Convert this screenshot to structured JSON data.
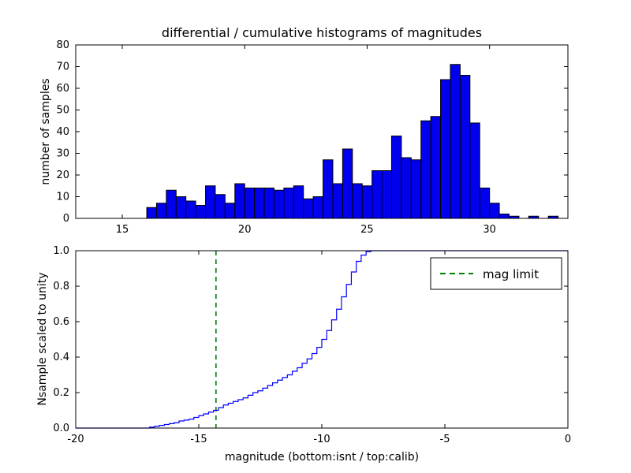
{
  "chart_data": [
    {
      "type": "bar",
      "title": "differential / cumulative histograms of magnitudes",
      "ylabel": "number of samples",
      "xlim": [
        13.1,
        33.2
      ],
      "ylim": [
        0,
        80
      ],
      "xticks": [
        15,
        20,
        25,
        30
      ],
      "xtick_labels": [
        "15",
        "20",
        "25",
        "30"
      ],
      "yticks": [
        0,
        10,
        20,
        30,
        40,
        50,
        60,
        70,
        80
      ],
      "ytick_labels": [
        "0",
        "10",
        "20",
        "30",
        "40",
        "50",
        "60",
        "70",
        "80"
      ],
      "bin_start": 16.0,
      "bin_width": 0.4,
      "values": [
        5,
        7,
        13,
        10,
        8,
        6,
        15,
        11,
        7,
        16,
        14,
        14,
        14,
        13,
        14,
        15,
        9,
        10,
        27,
        16,
        32,
        16,
        15,
        22,
        22,
        38,
        28,
        27,
        45,
        47,
        64,
        71,
        66,
        44,
        14,
        7,
        2,
        1,
        0,
        1,
        0,
        1
      ],
      "bar_fill": "#0000ee",
      "bar_edge": "#000000",
      "grid": false
    },
    {
      "type": "line",
      "step": true,
      "xlabel": "magnitude (bottom:isnt / top:calib)",
      "ylabel": "Nsample scaled to unity",
      "xlim": [
        -20,
        0
      ],
      "ylim": [
        0,
        1
      ],
      "xticks": [
        -20,
        -15,
        -10,
        -5,
        0
      ],
      "xtick_labels": [
        "-20",
        "-15",
        "-10",
        "-5",
        "0"
      ],
      "yticks": [
        0,
        0.2,
        0.4,
        0.6,
        0.8,
        1.0
      ],
      "ytick_labels": [
        "0.0",
        "0.2",
        "0.4",
        "0.6",
        "0.8",
        "1.0"
      ],
      "line_color": "#0000ff",
      "edges": [
        -20,
        -17.0,
        -16.8,
        -16.6,
        -16.4,
        -16.2,
        -16.0,
        -15.8,
        -15.6,
        -15.4,
        -15.2,
        -15.0,
        -14.8,
        -14.6,
        -14.4,
        -14.2,
        -14.0,
        -13.8,
        -13.6,
        -13.4,
        -13.2,
        -13.0,
        -12.8,
        -12.6,
        -12.4,
        -12.2,
        -12.0,
        -11.8,
        -11.6,
        -11.4,
        -11.2,
        -11.0,
        -10.8,
        -10.6,
        -10.4,
        -10.2,
        -10.0,
        -9.8,
        -9.6,
        -9.4,
        -9.2,
        -9.0,
        -8.8,
        -8.6,
        -8.4,
        -8.2,
        -8.0,
        0
      ],
      "values": [
        0,
        0.005,
        0.01,
        0.015,
        0.02,
        0.025,
        0.03,
        0.04,
        0.045,
        0.05,
        0.06,
        0.07,
        0.08,
        0.09,
        0.1,
        0.115,
        0.13,
        0.14,
        0.15,
        0.16,
        0.17,
        0.185,
        0.2,
        0.21,
        0.225,
        0.24,
        0.255,
        0.27,
        0.285,
        0.3,
        0.32,
        0.34,
        0.365,
        0.39,
        0.42,
        0.455,
        0.5,
        0.55,
        0.61,
        0.67,
        0.74,
        0.81,
        0.88,
        0.94,
        0.975,
        0.995,
        1.0
      ],
      "mag_limit_x": -14.3,
      "mag_limit_color": "#008000",
      "legend_label": "mag limit",
      "legend_position": "upper right",
      "grid": false
    }
  ]
}
